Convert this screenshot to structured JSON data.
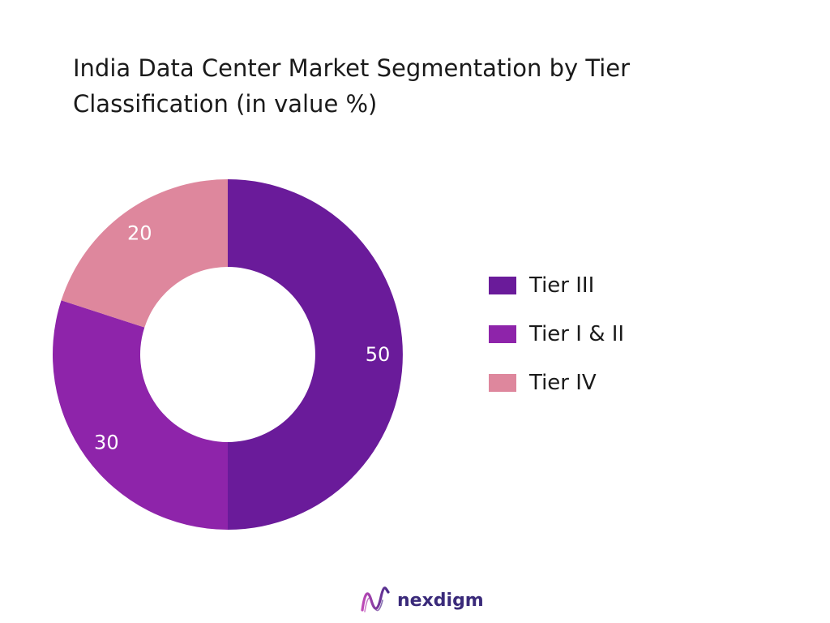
{
  "chart_data": {
    "type": "pie",
    "title": "India Data Center Market Segmentation by Tier Classification (in value %)",
    "categories": [
      "Tier III",
      "Tier I & II",
      "Tier IV"
    ],
    "values": [
      50,
      30,
      20
    ],
    "data_labels": [
      "50",
      "30",
      "20"
    ],
    "colors": [
      "#6a1b9a",
      "#8e24aa",
      "#de879d"
    ],
    "legend_position": "right",
    "donut": true
  },
  "brand": {
    "name": "nexdigm"
  }
}
